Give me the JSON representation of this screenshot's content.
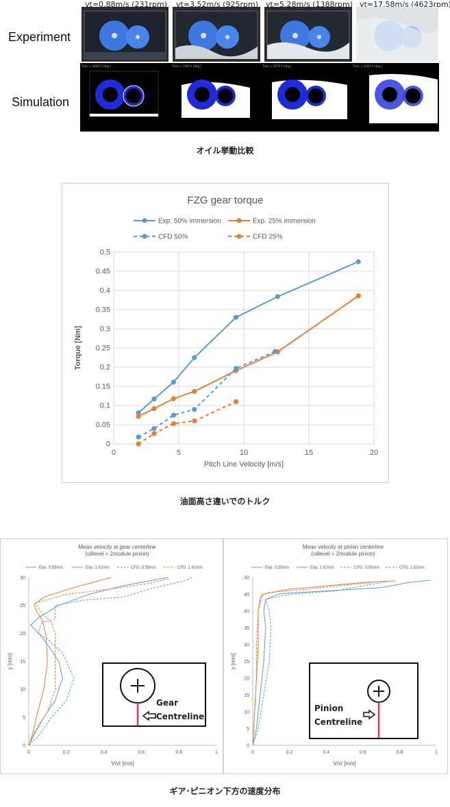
{
  "section1": {
    "speeds": [
      "vt=0.88m/s (231rpm)",
      "vt=3.52m/s (925rpm)",
      "vt=5.28m/s (1388rpm)",
      "vt=17.58m/s (4623rpm)"
    ],
    "row_experiment": "Experiment",
    "row_simulation": "Simulation",
    "sim_times": [
      "Time = 3600.2 [deg.]",
      "Time = 3360.1 [deg.]",
      "Time = 2879.2 [deg.]",
      "Time = 3240.4 [deg.]"
    ],
    "caption": "オイル挙動比較"
  },
  "section2": {
    "caption": "油面高さ違いでのトルク"
  },
  "section3": {
    "caption": "ギア･ピニオン下方の速度分布",
    "gear_inset": {
      "line1": "Gear",
      "line2": "Centreline"
    },
    "pinion_inset": {
      "line1": "Pinion",
      "line2": "Centreline"
    }
  },
  "chart_data": [
    {
      "type": "line",
      "title": "FZG gear torque",
      "xlabel": "Pitch Line Velocity [m/s]",
      "ylabel": "Torque [Nm]",
      "xlim": [
        0,
        20
      ],
      "ylim": [
        0,
        0.5
      ],
      "xticks": [
        "0",
        "5",
        "10",
        "15",
        "20"
      ],
      "yticks": [
        "0",
        "0.05",
        "0.1",
        "0.15",
        "0.2",
        "0.25",
        "0.3",
        "0.35",
        "0.4",
        "0.45",
        "0.5"
      ],
      "grid": true,
      "legend": "top",
      "series": [
        {
          "name": "Exp. 50% immersion",
          "color": "#5b9bd5",
          "dash": false,
          "points": [
            [
              1.9,
              0.081
            ],
            [
              3.1,
              0.117
            ],
            [
              4.6,
              0.161
            ],
            [
              6.2,
              0.225
            ],
            [
              9.4,
              0.33
            ],
            [
              12.6,
              0.384
            ],
            [
              18.8,
              0.475
            ]
          ]
        },
        {
          "name": "Exp. 25% immersion",
          "color": "#ed7d31",
          "dash": false,
          "points": [
            [
              1.9,
              0.072
            ],
            [
              3.1,
              0.092
            ],
            [
              4.6,
              0.118
            ],
            [
              6.2,
              0.137
            ],
            [
              9.4,
              0.191
            ],
            [
              12.6,
              0.24
            ],
            [
              18.8,
              0.386
            ]
          ]
        },
        {
          "name": "CFD 50%",
          "color": "#5b9bd5",
          "dash": true,
          "points": [
            [
              1.9,
              0.018
            ],
            [
              3.1,
              0.04
            ],
            [
              4.6,
              0.075
            ],
            [
              6.2,
              0.09
            ],
            [
              9.4,
              0.197
            ],
            [
              12.4,
              0.241
            ]
          ]
        },
        {
          "name": "CFD 25%",
          "color": "#ed7d31",
          "dash": true,
          "points": [
            [
              1.9,
              0.0
            ],
            [
              3.1,
              0.027
            ],
            [
              4.6,
              0.053
            ],
            [
              6.2,
              0.06
            ],
            [
              9.4,
              0.11
            ]
          ]
        }
      ]
    },
    {
      "type": "line",
      "title": "Mean velocity at gear centerline",
      "subtitle": "(oillevel = 2module pinion)",
      "xlabel": "V/vt [m/s]",
      "ylabel": "y  [mm]",
      "xlim": [
        0,
        1
      ],
      "ylim": [
        0,
        30
      ],
      "xticks": [
        "0",
        "0.2",
        "0.4",
        "0.6",
        "0.8",
        "1"
      ],
      "yticks": [
        "0",
        "5",
        "10",
        "15",
        "20",
        "25",
        "30"
      ],
      "legend": "top",
      "series": [
        {
          "name": "Exp. 0.55m/s",
          "color": "#5b9bd5",
          "dash": false,
          "points": [
            [
              0.0,
              0
            ],
            [
              0.03,
              2
            ],
            [
              0.08,
              5
            ],
            [
              0.14,
              8
            ],
            [
              0.18,
              12
            ],
            [
              0.16,
              15
            ],
            [
              0.1,
              18
            ],
            [
              0.06,
              19.8
            ],
            [
              0.01,
              21.5
            ],
            [
              0.06,
              23
            ],
            [
              0.16,
              25
            ],
            [
              0.32,
              27
            ],
            [
              0.5,
              28.5
            ],
            [
              0.74,
              30
            ]
          ]
        },
        {
          "name": "Exp. 1.62m/s",
          "color": "#ed7d31",
          "dash": false,
          "points": [
            [
              0.0,
              0
            ],
            [
              0.02,
              2
            ],
            [
              0.04,
              5
            ],
            [
              0.08,
              10
            ],
            [
              0.1,
              15
            ],
            [
              0.09,
              20
            ],
            [
              0.07,
              22.5
            ],
            [
              0.04,
              24
            ],
            [
              0.03,
              25.2
            ],
            [
              0.08,
              26.5
            ],
            [
              0.22,
              28
            ],
            [
              0.38,
              29.5
            ],
            [
              0.44,
              30
            ]
          ]
        },
        {
          "name": "CFD. 0.55m/s",
          "color": "#5b9bd5",
          "dash": true,
          "points": [
            [
              0.0,
              0
            ],
            [
              0.06,
              2
            ],
            [
              0.12,
              5
            ],
            [
              0.2,
              8
            ],
            [
              0.22,
              10
            ],
            [
              0.24,
              12
            ],
            [
              0.22,
              13.5
            ],
            [
              0.2,
              15
            ],
            [
              0.18,
              16.5
            ],
            [
              0.1,
              19
            ],
            [
              0.05,
              20
            ],
            [
              0.07,
              22
            ],
            [
              0.14,
              22.5
            ],
            [
              0.14,
              25
            ],
            [
              0.3,
              26
            ],
            [
              0.5,
              26.5
            ],
            [
              0.65,
              28
            ],
            [
              0.84,
              29.5
            ],
            [
              0.87,
              30
            ]
          ]
        },
        {
          "name": "CFD. 1.62m/s",
          "color": "#ed7d31",
          "dash": true,
          "points": [
            [
              0.0,
              0
            ],
            [
              0.04,
              3
            ],
            [
              0.1,
              6
            ],
            [
              0.14,
              10
            ],
            [
              0.14,
              15
            ],
            [
              0.14,
              20
            ],
            [
              0.12,
              22
            ],
            [
              0.06,
              24
            ],
            [
              0.04,
              25.5
            ],
            [
              0.2,
              27
            ],
            [
              0.45,
              28
            ],
            [
              0.65,
              29
            ],
            [
              0.75,
              29.8
            ]
          ]
        }
      ]
    },
    {
      "type": "line",
      "title": "Mean velocity at pinion centerline",
      "subtitle": "(oillevel = 2module pinion)",
      "xlabel": "V/vt [m/s]",
      "ylabel": "y  [mm]",
      "xlim": [
        0,
        1
      ],
      "ylim": [
        0,
        50
      ],
      "xticks": [
        "0",
        "0.2",
        "0.4",
        "0.6",
        "0.8",
        "1"
      ],
      "yticks": [
        "0",
        "5",
        "10",
        "15",
        "20",
        "25",
        "30",
        "35",
        "40",
        "45",
        "50"
      ],
      "legend": "top",
      "series": [
        {
          "name": "Exp. 0.55m/s",
          "color": "#5b9bd5",
          "dash": false,
          "points": [
            [
              0.0,
              0
            ],
            [
              0.02,
              5
            ],
            [
              0.04,
              15
            ],
            [
              0.06,
              25
            ],
            [
              0.07,
              35
            ],
            [
              0.06,
              40
            ],
            [
              0.07,
              43.5
            ],
            [
              0.15,
              45.2
            ],
            [
              0.4,
              46
            ],
            [
              0.7,
              47
            ],
            [
              0.85,
              48.5
            ],
            [
              0.97,
              49.2
            ]
          ]
        },
        {
          "name": "Exp. 1.62m/s",
          "color": "#ed7d31",
          "dash": false,
          "points": [
            [
              0.0,
              0
            ],
            [
              0.01,
              10
            ],
            [
              0.02,
              20
            ],
            [
              0.03,
              30
            ],
            [
              0.03,
              40
            ],
            [
              0.05,
              45
            ],
            [
              0.2,
              46.5
            ],
            [
              0.4,
              47.5
            ],
            [
              0.6,
              48.5
            ],
            [
              0.78,
              49
            ]
          ]
        },
        {
          "name": "CFD. 0.55m/s",
          "color": "#5b9bd5",
          "dash": true,
          "points": [
            [
              0.0,
              0
            ],
            [
              0.03,
              5
            ],
            [
              0.06,
              15
            ],
            [
              0.09,
              25
            ],
            [
              0.1,
              35
            ],
            [
              0.09,
              40
            ],
            [
              0.07,
              43.5
            ],
            [
              0.2,
              45
            ],
            [
              0.45,
              46
            ],
            [
              0.6,
              47.5
            ],
            [
              0.75,
              49
            ]
          ]
        },
        {
          "name": "CFD. 1.62m/s",
          "color": "#ed7d31",
          "dash": true,
          "points": [
            [
              0.0,
              0
            ],
            [
              0.01,
              10
            ],
            [
              0.02,
              20
            ],
            [
              0.02,
              30
            ],
            [
              0.03,
              40
            ],
            [
              0.04,
              44
            ],
            [
              0.08,
              45.5
            ],
            [
              0.3,
              46.5
            ],
            [
              0.55,
              48
            ],
            [
              0.73,
              49
            ]
          ]
        }
      ]
    }
  ]
}
